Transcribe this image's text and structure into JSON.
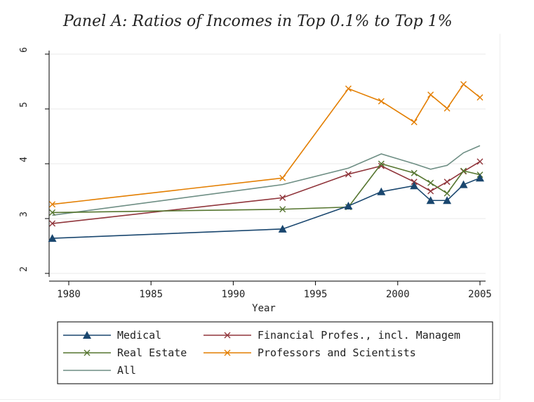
{
  "chart_data": {
    "type": "line",
    "title": "Panel A: Ratios of Incomes in Top 0.1% to Top 1%",
    "xlabel": "Year",
    "ylabel": "",
    "xlim": [
      1979,
      2005
    ],
    "ylim": [
      2,
      6
    ],
    "xticks": [
      1980,
      1985,
      1990,
      1995,
      2000,
      2005
    ],
    "yticks": [
      2,
      3,
      4,
      5,
      6
    ],
    "grid": true,
    "legend_placement": "bottom",
    "x": [
      1979,
      1993,
      1997,
      1999,
      2001,
      2002,
      2003,
      2004,
      2005
    ],
    "series": [
      {
        "name": "Medical",
        "color": "#1a476f",
        "marker": "triangle",
        "values": [
          2.64,
          2.81,
          3.23,
          3.49,
          3.6,
          3.33,
          3.33,
          3.62,
          3.74
        ]
      },
      {
        "name": "Financial Profes., incl. Managem",
        "color": "#90353b",
        "marker": "x",
        "values": [
          2.91,
          3.38,
          3.81,
          3.96,
          3.67,
          3.5,
          3.67,
          3.86,
          4.04
        ]
      },
      {
        "name": "Real Estate",
        "color": "#55752f",
        "marker": "x",
        "values": [
          3.11,
          3.17,
          3.21,
          4.0,
          3.83,
          3.65,
          3.46,
          3.87,
          3.8
        ]
      },
      {
        "name": "Professors and Scientists",
        "color": "#e37e00",
        "marker": "x",
        "values": [
          3.26,
          3.74,
          5.37,
          5.14,
          4.76,
          5.26,
          5.01,
          5.45,
          5.21
        ]
      },
      {
        "name": "All",
        "color": "#6e8e84",
        "marker": "none",
        "values": [
          3.06,
          3.62,
          3.92,
          4.18,
          4.0,
          3.9,
          3.97,
          4.2,
          4.33
        ]
      }
    ]
  }
}
